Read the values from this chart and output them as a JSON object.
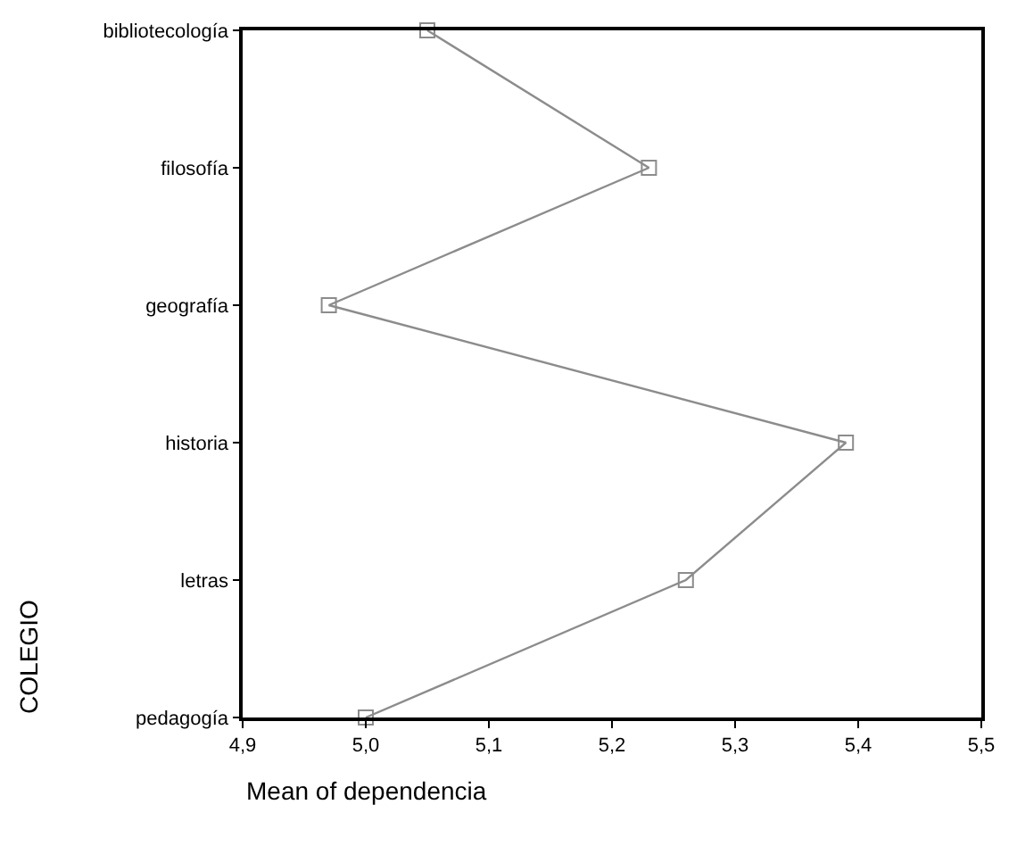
{
  "chart_data": {
    "type": "line",
    "xlabel": "Mean of dependencia",
    "ylabel": "COLEGIO",
    "orientation": "horizontal",
    "categories": [
      "bibliotecología",
      "filosofía",
      "geografía",
      "historia",
      "letras",
      "pedagogía"
    ],
    "values": [
      5.05,
      5.23,
      4.97,
      5.39,
      5.26,
      5.0
    ],
    "color": "#8c8c8c",
    "marker": "square",
    "line_style": "solid",
    "legend": false,
    "xlim": [
      4.9,
      5.5
    ],
    "xticks": [
      {
        "value": 4.9,
        "label": "4,9"
      },
      {
        "value": 5.0,
        "label": "5,0"
      },
      {
        "value": 5.1,
        "label": "5,1"
      },
      {
        "value": 5.2,
        "label": "5,2"
      },
      {
        "value": 5.3,
        "label": "5,3"
      },
      {
        "value": 5.4,
        "label": "5,4"
      },
      {
        "value": 5.5,
        "label": "5,5"
      }
    ]
  }
}
